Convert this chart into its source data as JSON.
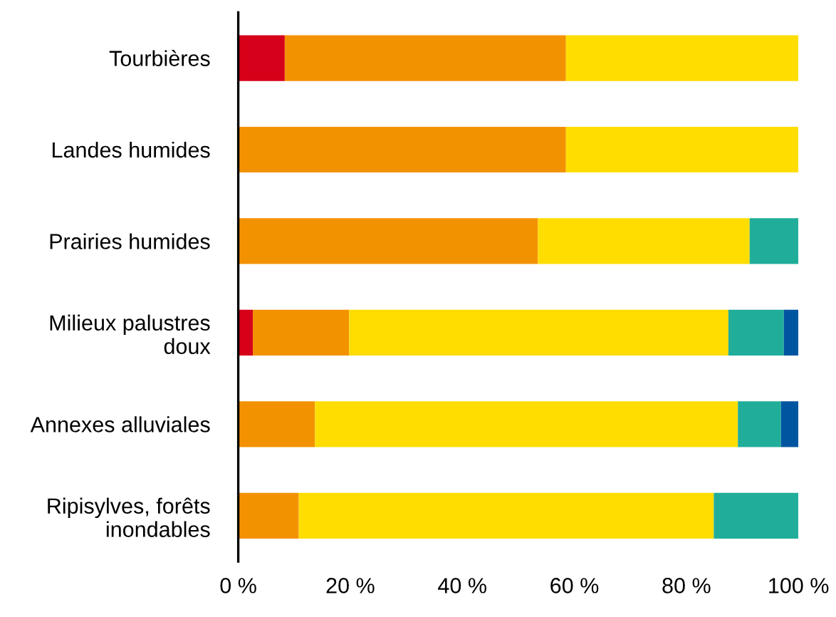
{
  "chart_data": {
    "type": "bar",
    "orientation": "horizontal",
    "stacked": true,
    "categories": [
      "Tourbières",
      "Landes humides",
      "Prairies humides",
      "Milieux palustres\ndoux",
      "Annexes alluviales",
      "Ripisylves, forêts\ninondables"
    ],
    "series": [
      {
        "color": "#d7001a",
        "values": [
          8.3,
          null,
          null,
          2.6,
          null,
          null
        ]
      },
      {
        "color": "#f39200",
        "values": [
          50.2,
          58.5,
          53.5,
          17.2,
          13.7,
          10.8
        ]
      },
      {
        "color": "#ffdd00",
        "values": [
          41.5,
          41.5,
          37.8,
          67.7,
          75.5,
          74.1
        ]
      },
      {
        "color": "#20ad99",
        "values": [
          null,
          null,
          8.7,
          9.9,
          7.7,
          15.1
        ]
      },
      {
        "color": "#0055a0",
        "values": [
          null,
          null,
          null,
          2.6,
          3.1,
          null
        ]
      }
    ],
    "xlim": [
      0,
      100
    ],
    "xticks": [
      {
        "value": 0,
        "label": "0 %"
      },
      {
        "value": 20,
        "label": "20 %"
      },
      {
        "value": 40,
        "label": "40 %"
      },
      {
        "value": 60,
        "label": "60 %"
      },
      {
        "value": 80,
        "label": "80 %"
      },
      {
        "value": 100,
        "label": "100 %"
      }
    ],
    "grid": false,
    "legend": false
  }
}
